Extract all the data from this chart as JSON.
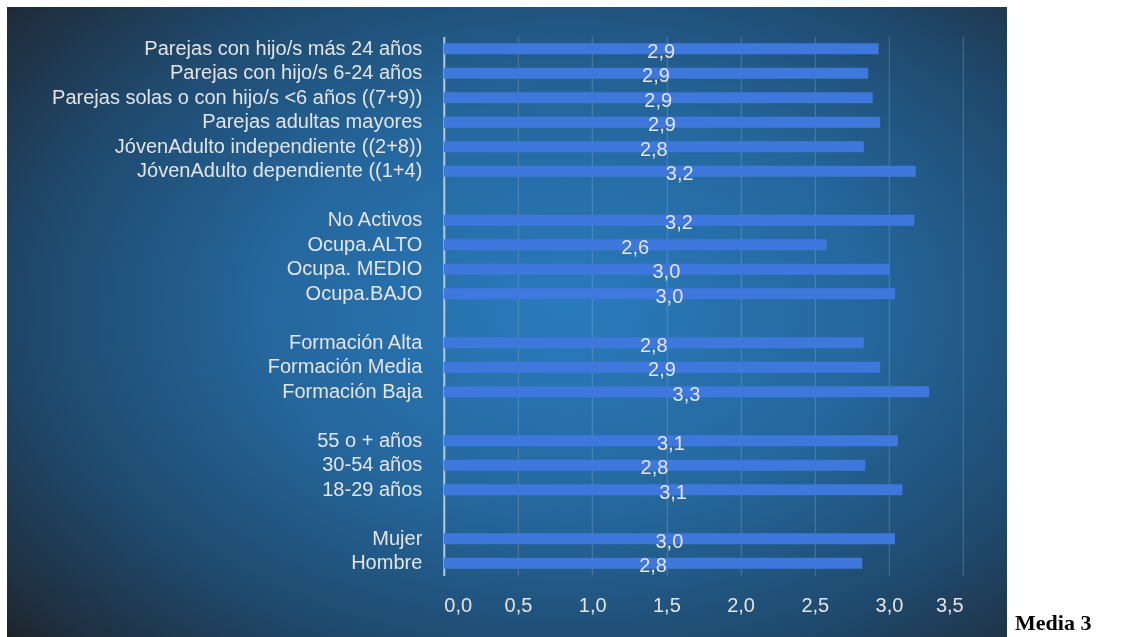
{
  "chart_data": {
    "type": "bar",
    "orientation": "horizontal",
    "categories": [
      "Parejas con hijo/s más 24 años",
      "Parejas con hijo/s 6-24 años",
      "Parejas solas o con hijo/s <6 años ((7+9))",
      "Parejas adultas mayores",
      "JóvenAdulto independiente ((2+8))",
      "JóvenAdulto dependiente ((1+4)",
      null,
      "No Activos",
      "Ocupa.ALTO",
      "Ocupa. MEDIO",
      "Ocupa.BAJO",
      null,
      "Formación Alta",
      "Formación Media",
      "Formación Baja",
      null,
      "55 o + años",
      "30-54 años",
      "18-29 años",
      null,
      "Mujer",
      "Hombre"
    ],
    "values": [
      2.93,
      2.86,
      2.89,
      2.94,
      2.83,
      3.18,
      null,
      3.17,
      2.58,
      3.0,
      3.04,
      null,
      2.83,
      2.94,
      3.27,
      null,
      3.06,
      2.84,
      3.09,
      null,
      3.04,
      2.82
    ],
    "value_labels": [
      "2,9",
      "2,9",
      "2,9",
      "2,9",
      "2,8",
      "3,2",
      null,
      "3,2",
      "2,6",
      "3,0",
      "3,0",
      null,
      "2,8",
      "2,9",
      "3,3",
      null,
      "3,1",
      "2,8",
      "3,1",
      null,
      "3,0",
      "2,8"
    ],
    "color": "#3e78dc",
    "xlim": [
      0,
      3.5
    ],
    "xticks": [
      {
        "value": 0,
        "label": "0,0"
      },
      {
        "value": 0.5,
        "label": "0,5"
      },
      {
        "value": 1,
        "label": "1,0"
      },
      {
        "value": 1.5,
        "label": "1,5"
      },
      {
        "value": 2,
        "label": "2,0"
      },
      {
        "value": 2.5,
        "label": "2,5"
      },
      {
        "value": 3,
        "label": "3,0"
      },
      {
        "value": 3.5,
        "label": "3,5"
      }
    ],
    "grid": "x",
    "annotations": [
      "Media 3"
    ]
  }
}
